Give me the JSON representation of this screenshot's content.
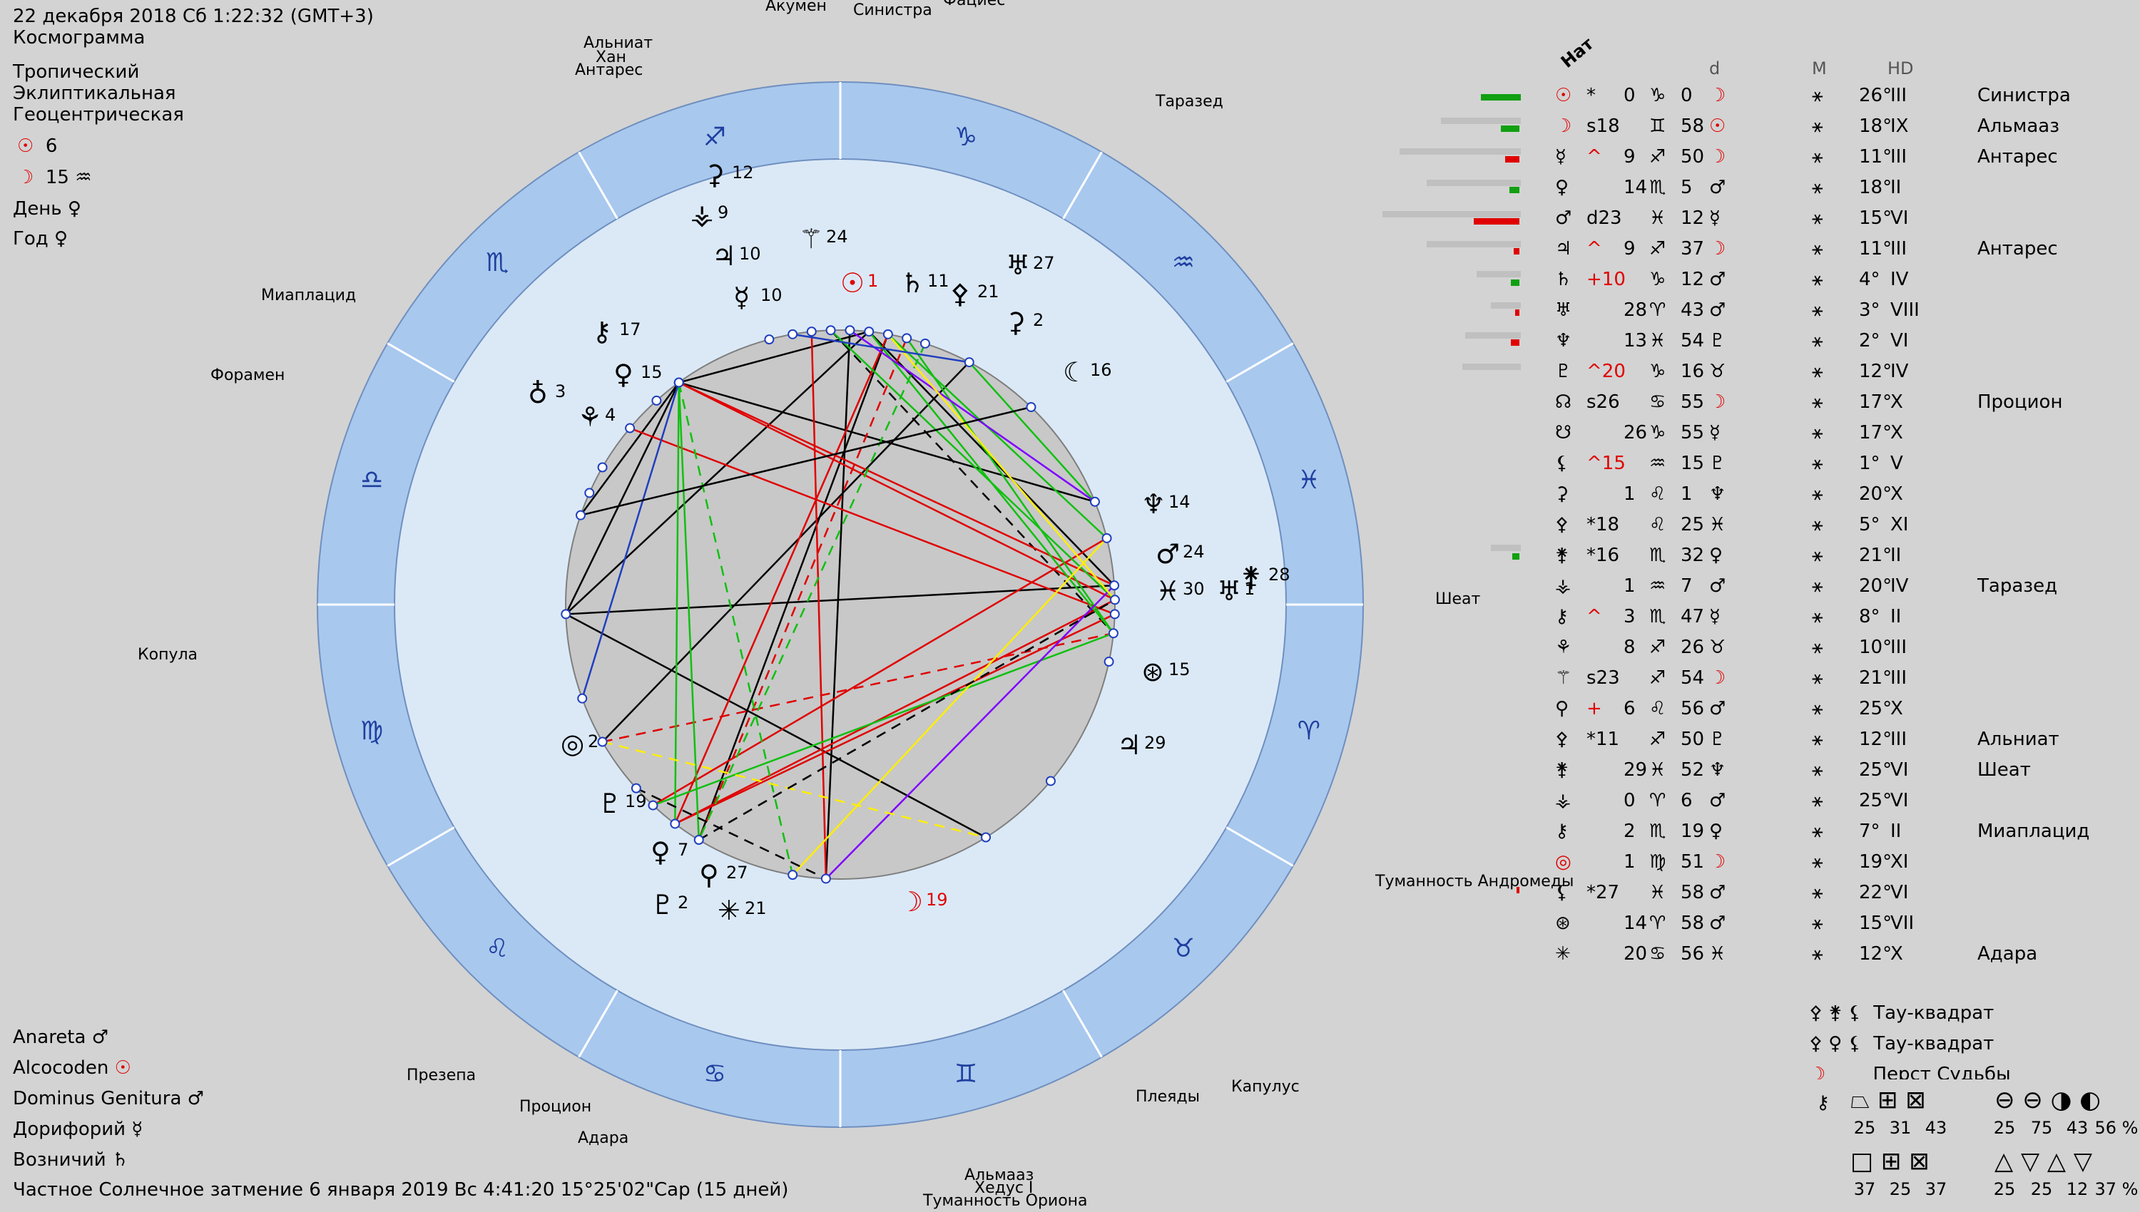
{
  "header": {
    "datetime": "22 декабря 2018  Сб   1:22:32 (GMT+3)",
    "type": "Космограмма",
    "mode1": "Тропический",
    "mode2": "Эклиптикальная",
    "mode3": "Геоцентрическая",
    "sun_value": "6",
    "moon_value": "15",
    "day_label": "День",
    "year_label": "Год"
  },
  "bottom_left": {
    "anareta": "Anareta",
    "alcocoden": "Alcocoden",
    "dominus": "Dominus Genitura",
    "doryphory": "Дорифорий",
    "auriga": "Возничий"
  },
  "eclipse_line": "Частное Солнечное затмение 6 января 2019 Вс  4:41:20 15°25'02\"Сар (15 дней)",
  "stars": {
    "akumen": "Акумен",
    "sinistra": "Синистра",
    "fatsies": "Фациес",
    "alnian": "Альниат",
    "khan": "Хан",
    "antares": "Антарес",
    "tarazed": "Таразед",
    "miaplatsid": "Миаплацид",
    "foramen": "Форамен",
    "sheat": "Шеат",
    "kopula": "Копула",
    "andromeda": "Туманность Андромеды",
    "prezepa": "Презепа",
    "procyon": "Процион",
    "adara": "Адара",
    "pleiades": "Плеяды",
    "kapulus": "Капулус",
    "almaaz": "Альмааз",
    "hedus": "Хедус I",
    "orion": "Туманность Ориона"
  },
  "table": {
    "nat_label": "Нат",
    "d_label": "d",
    "m_label": "M",
    "hd_label": "HD",
    "rows": [
      {
        "sym": "☉",
        "mark": "*",
        "pos": "0",
        "sign": "♑",
        "min": "0",
        "ruler": "☽",
        "msym": "⚹",
        "deg": "26°",
        "house": "III",
        "star": "Синистра"
      },
      {
        "sym": "☽",
        "mark": "s18",
        "pos": "",
        "sign": "♊",
        "min": "58",
        "ruler": "☉",
        "msym": "⚹",
        "deg": "18°",
        "house": "IX",
        "star": "Альмааз"
      },
      {
        "sym": "☿",
        "mark": "^",
        "pos": "9",
        "sign": "♐",
        "min": "50",
        "ruler": "☽",
        "msym": "⚹",
        "deg": "11°",
        "house": "III",
        "star": "Антарес"
      },
      {
        "sym": "♀",
        "mark": "",
        "pos": "14",
        "sign": "♏",
        "min": "5",
        "ruler": "♂",
        "msym": "⚹",
        "deg": "18°",
        "house": "II",
        "star": ""
      },
      {
        "sym": "♂",
        "mark": "d23",
        "pos": "",
        "sign": "♓",
        "min": "12",
        "ruler": "☿",
        "msym": "⚹",
        "deg": "15°",
        "house": "VI",
        "star": ""
      },
      {
        "sym": "♃",
        "mark": "^",
        "pos": "9",
        "sign": "♐",
        "min": "37",
        "ruler": "☽",
        "msym": "⚹",
        "deg": "11°",
        "house": "III",
        "star": "Антарес"
      },
      {
        "sym": "♄",
        "mark": "+10",
        "pos": "",
        "sign": "♑",
        "min": "12",
        "ruler": "♂",
        "msym": "⚹",
        "deg": "4°",
        "house": "IV",
        "star": ""
      },
      {
        "sym": "♅",
        "mark": "",
        "pos": "28",
        "sign": "♈",
        "min": "43",
        "ruler": "♂",
        "msym": "⚹",
        "deg": "3°",
        "house": "VIII",
        "star": ""
      },
      {
        "sym": "♆",
        "mark": "",
        "pos": "13",
        "sign": "♓",
        "min": "54",
        "ruler": "♇",
        "msym": "⚹",
        "deg": "2°",
        "house": "VI",
        "star": ""
      },
      {
        "sym": "♇",
        "mark": "^20",
        "pos": "",
        "sign": "♑",
        "min": "16",
        "ruler": "♉",
        "msym": "⚹",
        "deg": "12°",
        "house": "IV",
        "star": ""
      },
      {
        "sym": "☊",
        "mark": "s26",
        "pos": "",
        "sign": "♋",
        "min": "55",
        "ruler": "☽",
        "msym": "⚹",
        "deg": "17°",
        "house": "X",
        "star": "Процион"
      },
      {
        "sym": "☋",
        "mark": "",
        "pos": "26",
        "sign": "♑",
        "min": "55",
        "ruler": "☿",
        "msym": "⚹",
        "deg": "17°",
        "house": "X",
        "star": ""
      },
      {
        "sym": "⚸",
        "mark": "^15",
        "pos": "",
        "sign": "♒",
        "min": "15",
        "ruler": "♇",
        "msym": "⚹",
        "deg": "1°",
        "house": "V",
        "star": ""
      },
      {
        "sym": "⚳",
        "mark": "",
        "pos": "1",
        "sign": "♌",
        "min": "1",
        "ruler": "♆",
        "msym": "⚹",
        "deg": "20°",
        "house": "X",
        "star": ""
      },
      {
        "sym": "⚴",
        "mark": "*18",
        "pos": "",
        "sign": "♌",
        "min": "25",
        "ruler": "♓",
        "msym": "⚹",
        "deg": "5°",
        "house": "XI",
        "star": ""
      },
      {
        "sym": "⚵",
        "mark": "*16",
        "pos": "",
        "sign": "♏",
        "min": "32",
        "ruler": "♀",
        "msym": "⚹",
        "deg": "21°",
        "house": "II",
        "star": ""
      },
      {
        "sym": "⚶",
        "mark": "",
        "pos": "1",
        "sign": "♒",
        "min": "7",
        "ruler": "♂",
        "msym": "⚹",
        "deg": "20°",
        "house": "IV",
        "star": "Таразед"
      },
      {
        "sym": "⚷",
        "mark": "^",
        "pos": "3",
        "sign": "♏",
        "min": "47",
        "ruler": "☿",
        "msym": "⚹",
        "deg": "8°",
        "house": "II",
        "star": ""
      },
      {
        "sym": "⚘",
        "mark": "",
        "pos": "8",
        "sign": "♐",
        "min": "26",
        "ruler": "♉",
        "msym": "⚹",
        "deg": "10°",
        "house": "III",
        "star": ""
      },
      {
        "sym": "⚚",
        "mark": "s23",
        "pos": "",
        "sign": "♐",
        "min": "54",
        "ruler": "☽",
        "msym": "⚹",
        "deg": "21°",
        "house": "III",
        "star": ""
      },
      {
        "sym": "⚲",
        "mark": "+",
        "pos": "6",
        "sign": "♌",
        "min": "56",
        "ruler": "♂",
        "msym": "⚹",
        "deg": "25°",
        "house": "X",
        "star": ""
      },
      {
        "sym": "⚴",
        "mark": "*11",
        "pos": "",
        "sign": "♐",
        "min": "50",
        "ruler": "♇",
        "msym": "⚹",
        "deg": "12°",
        "house": "III",
        "star": "Альниат"
      },
      {
        "sym": "⚵",
        "mark": "",
        "pos": "29",
        "sign": "♓",
        "min": "52",
        "ruler": "♆",
        "msym": "⚹",
        "deg": "25°",
        "house": "VI",
        "star": "Шеат"
      },
      {
        "sym": "⚶",
        "mark": "",
        "pos": "0",
        "sign": "♈",
        "min": "6",
        "ruler": "♂",
        "msym": "⚹",
        "deg": "25°",
        "house": "VI",
        "star": ""
      },
      {
        "sym": "⚷",
        "mark": "",
        "pos": "2",
        "sign": "♏",
        "min": "19",
        "ruler": "♀",
        "msym": "⚹",
        "deg": "7°",
        "house": "II",
        "star": "Миаплацид"
      },
      {
        "sym": "◎",
        "mark": "",
        "pos": "1",
        "sign": "♍",
        "min": "51",
        "ruler": "☽",
        "msym": "⚹",
        "deg": "19°",
        "house": "XI",
        "star": ""
      },
      {
        "sym": "⚸",
        "mark": "*27",
        "pos": "",
        "sign": "♓",
        "min": "58",
        "ruler": "♂",
        "msym": "⚹",
        "deg": "22°",
        "house": "VI",
        "star": ""
      },
      {
        "sym": "⊛",
        "mark": "",
        "pos": "14",
        "sign": "♈",
        "min": "58",
        "ruler": "♂",
        "msym": "⚹",
        "deg": "15°",
        "house": "VII",
        "star": ""
      },
      {
        "sym": "✳",
        "mark": "",
        "pos": "20",
        "sign": "♋",
        "min": "56",
        "ruler": "♓",
        "msym": "⚹",
        "deg": "12°",
        "house": "X",
        "star": "Адара"
      }
    ]
  },
  "figures": {
    "tau1": "Тау-квадрат",
    "tau2": "Тау-квадрат",
    "finger": "Перст Судьбы"
  },
  "stats": {
    "row1": [
      "25",
      "31",
      "43"
    ],
    "row1b": [
      "25",
      "75",
      "43",
      "56 %"
    ],
    "row2": [
      "37",
      "25",
      "37"
    ],
    "row2b": [
      "25",
      "25",
      "12",
      "37 %"
    ]
  },
  "chart_data": {
    "type": "table",
    "zodiac_signs": [
      "♐",
      "♑",
      "♒",
      "♓",
      "♈",
      "♉",
      "♊",
      "♋",
      "♌",
      "♍",
      "♎",
      "♏"
    ],
    "planet_labels": [
      {
        "glyph": "☉",
        "value": "1"
      },
      {
        "glyph": "♄",
        "value": "11"
      },
      {
        "glyph": "⚴",
        "value": "21"
      },
      {
        "glyph": "♅",
        "value": "27"
      },
      {
        "glyph": "⚳",
        "value": "2"
      },
      {
        "glyph": "☾",
        "value": "16"
      },
      {
        "glyph": "♆",
        "value": "14"
      },
      {
        "glyph": "♂",
        "value": "24"
      },
      {
        "glyph": "♓",
        "value": "30"
      },
      {
        "glyph": "♅",
        "value": "1"
      },
      {
        "glyph": "⚵",
        "value": "28"
      },
      {
        "glyph": "⊛",
        "value": "15"
      },
      {
        "glyph": "♃",
        "value": "29"
      },
      {
        "glyph": "☽",
        "value": "19"
      },
      {
        "glyph": "✳",
        "value": "21"
      },
      {
        "glyph": "⚲",
        "value": "27"
      },
      {
        "glyph": "♇",
        "value": "2"
      },
      {
        "glyph": "♀",
        "value": "7"
      },
      {
        "glyph": "♇",
        "value": "19"
      },
      {
        "glyph": "◎",
        "value": "2"
      },
      {
        "glyph": "♁",
        "value": "3"
      },
      {
        "glyph": "⚘",
        "value": "4"
      },
      {
        "glyph": "♀",
        "value": "15"
      },
      {
        "glyph": "⚷",
        "value": "17"
      },
      {
        "glyph": "☿",
        "value": "10"
      },
      {
        "glyph": "♃",
        "value": "10"
      },
      {
        "glyph": "⚶",
        "value": "9"
      },
      {
        "glyph": "⚳",
        "value": "12"
      },
      {
        "glyph": "⚚",
        "value": "24"
      }
    ]
  }
}
